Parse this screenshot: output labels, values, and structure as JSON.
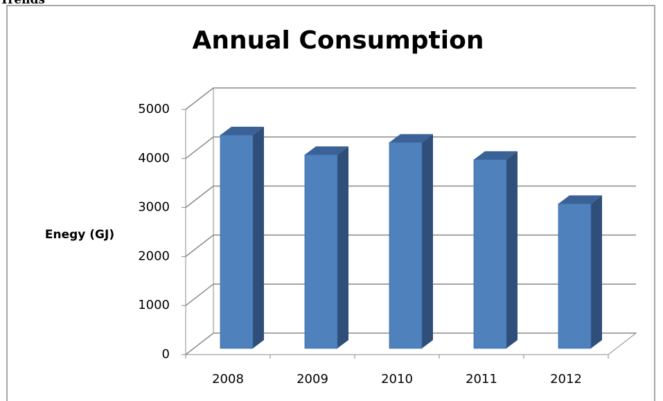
{
  "heading": "Trends",
  "chart_data": {
    "type": "bar3d",
    "title": "Annual Consumption",
    "y_label": "Enegy (GJ)",
    "categories": [
      "2008",
      "2009",
      "2010",
      "2011",
      "2012"
    ],
    "values": [
      4350,
      3950,
      4200,
      3850,
      2950
    ],
    "color": "#4f81bd",
    "ylim": [
      0,
      5000
    ],
    "yticks": [
      0,
      1000,
      2000,
      3000,
      4000,
      5000
    ],
    "grid": true
  }
}
